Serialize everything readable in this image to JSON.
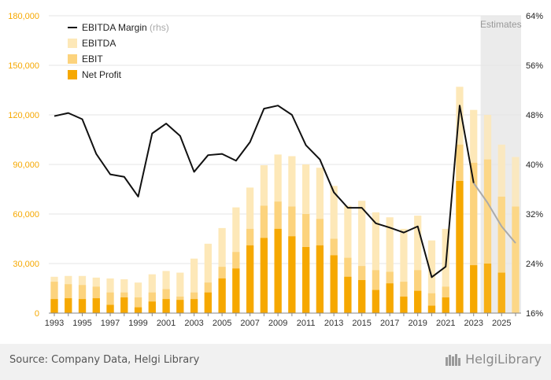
{
  "chart_data": {
    "type": "bar",
    "x": [
      1993,
      1994,
      1995,
      1996,
      1997,
      1998,
      1999,
      2000,
      2001,
      2002,
      2003,
      2004,
      2005,
      2006,
      2007,
      2008,
      2009,
      2010,
      2011,
      2012,
      2013,
      2014,
      2015,
      2016,
      2017,
      2018,
      2019,
      2020,
      2021,
      2022,
      2023,
      2024,
      2025,
      2026
    ],
    "x_tick_labels": [
      "1993",
      "1995",
      "1997",
      "1999",
      "2001",
      "2003",
      "2005",
      "2007",
      "2009",
      "2011",
      "2013",
      "2015",
      "2017",
      "2019",
      "2021",
      "2023",
      "2025"
    ],
    "ylim": [
      0,
      180000
    ],
    "y_ticks": [
      0,
      30000,
      60000,
      90000,
      120000,
      150000,
      180000
    ],
    "y_tick_labels": [
      "0",
      "30,000",
      "60,000",
      "90,000",
      "120,000",
      "150,000",
      "180,000"
    ],
    "y2lim": [
      16,
      64
    ],
    "y2_ticks": [
      16,
      24,
      32,
      40,
      48,
      56,
      64
    ],
    "y2_tick_labels": [
      "16%",
      "24%",
      "32%",
      "40%",
      "48%",
      "56%",
      "64%"
    ],
    "grid": true,
    "legend_position": "top-left",
    "estimates_label": "Estimates",
    "estimates_from": 2024,
    "series": [
      {
        "name": "EBITDA",
        "color": "#fde8b8",
        "values": [
          22000,
          22500,
          22500,
          21500,
          21000,
          20500,
          18500,
          23500,
          25500,
          24500,
          33000,
          42000,
          51500,
          64000,
          76000,
          89500,
          96000,
          95000,
          90000,
          88000,
          77000,
          65000,
          68000,
          61000,
          58000,
          51000,
          59000,
          44000,
          51000,
          137000,
          123000,
          120000,
          102000,
          94500
        ]
      },
      {
        "name": "EBIT",
        "color": "#fcd37d",
        "values": [
          19000,
          17500,
          17000,
          16000,
          12500,
          12500,
          9500,
          12500,
          14500,
          10000,
          12500,
          18500,
          28000,
          37000,
          51000,
          65000,
          67500,
          64500,
          60000,
          57000,
          45000,
          33500,
          28500,
          26000,
          25000,
          19000,
          26000,
          12000,
          16000,
          102000,
          91000,
          93000,
          70500,
          64500
        ]
      },
      {
        "name": "Net Profit",
        "color": "#f6a800",
        "values": [
          8500,
          9000,
          8500,
          9000,
          5000,
          9500,
          3500,
          7000,
          8500,
          8000,
          8500,
          12500,
          21000,
          27000,
          41000,
          45500,
          51000,
          46500,
          40000,
          41000,
          35000,
          22000,
          20000,
          14000,
          18000,
          10000,
          13500,
          4500,
          9500,
          80000,
          29000,
          30000,
          24500,
          null
        ]
      },
      {
        "name": "EBITDA Margin",
        "suffix": "(rhs)",
        "axis": "right",
        "color": "#111111",
        "estimate_color": "#aaaaaa",
        "values": [
          47.8,
          48.3,
          47.3,
          41.7,
          38.4,
          38.0,
          34.8,
          45.0,
          46.6,
          44.6,
          38.8,
          41.5,
          41.7,
          40.6,
          43.6,
          49.0,
          49.5,
          48.0,
          43.1,
          40.8,
          35.5,
          33.0,
          33.0,
          30.5,
          29.8,
          29.0,
          30.0,
          21.8,
          23.5,
          49.5,
          37.0,
          33.8,
          30.0,
          27.3
        ]
      }
    ]
  },
  "footer": {
    "source": "Source: Company Data, Helgi Library",
    "logo": "HelgiLibrary"
  }
}
